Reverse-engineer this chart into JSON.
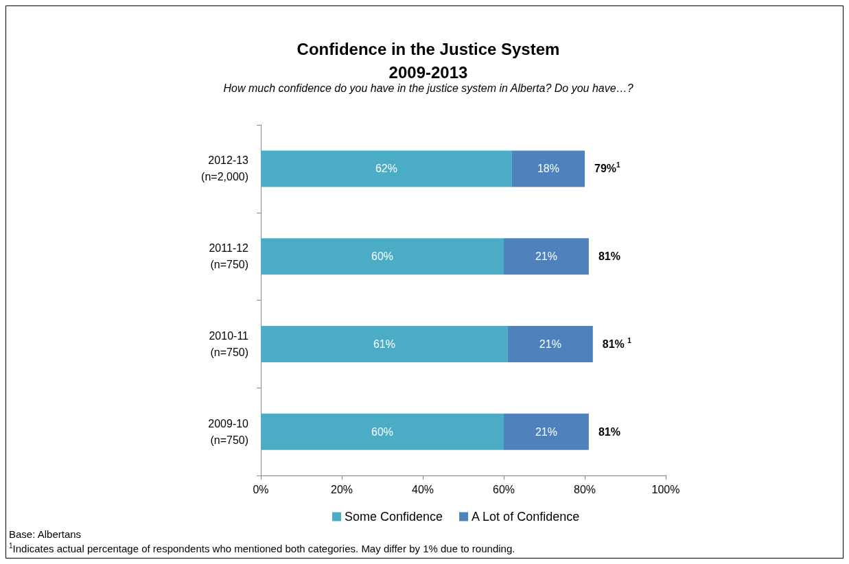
{
  "chart_data": {
    "type": "bar",
    "orientation": "horizontal",
    "stacked": true,
    "title": "Confidence in the Justice System\n2009-2013",
    "subtitle": "How much confidence do you have in the justice system in Alberta? Do you have…?",
    "categories": [
      "2012-13\n(n=2,000)",
      "2011-12\n(n=750)",
      "2010-11\n(n=750)",
      "2009-10\n(n=750)"
    ],
    "series": [
      {
        "name": "Some Confidence",
        "color": "#4bacc6",
        "values": [
          62,
          60,
          61,
          60
        ],
        "value_labels": [
          "62%",
          "60%",
          "61%",
          "60%"
        ]
      },
      {
        "name": "A Lot of Confidence",
        "color": "#4f81bd",
        "values": [
          18,
          21,
          21,
          21
        ],
        "value_labels": [
          "18%",
          "21%",
          "21%",
          "21%"
        ]
      }
    ],
    "totals": [
      "79%$^{1}$",
      "81%",
      "81% $^{1}$",
      "81%"
    ],
    "xlim": [
      0,
      100
    ],
    "xticks": [
      {
        "value": 0,
        "label": "0%"
      },
      {
        "value": 20,
        "label": "20%"
      },
      {
        "value": 40,
        "label": "40%"
      },
      {
        "value": 60,
        "label": "60%"
      },
      {
        "value": 80,
        "label": "80%"
      },
      {
        "value": 100,
        "label": "100%"
      }
    ],
    "grid": false,
    "legend": "bottom",
    "annotations": [
      "Base: Albertans",
      "$^{1}$Indicates actual percentage of respondents who mentioned both categories. May differ by 1% due to rounding."
    ]
  }
}
